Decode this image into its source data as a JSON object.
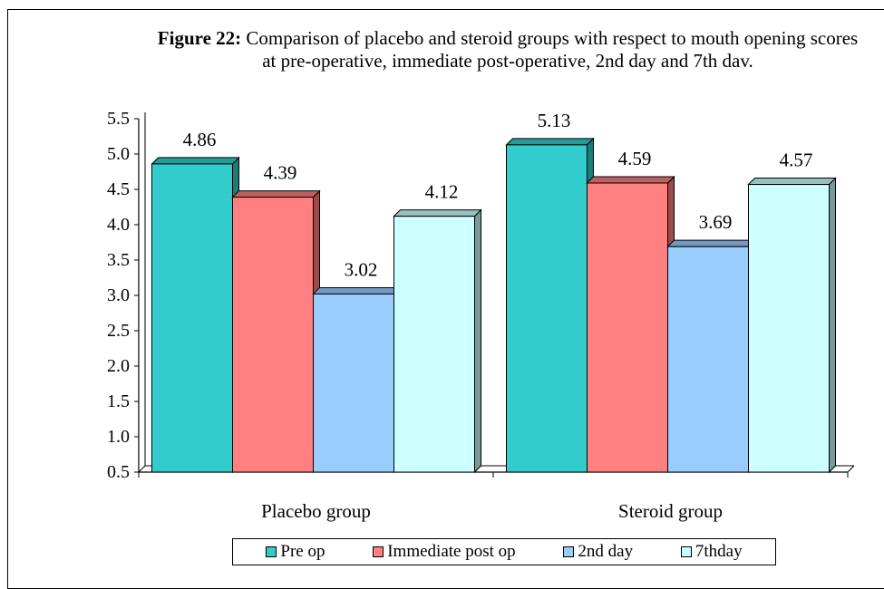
{
  "title": {
    "prefix": "Figure 22:",
    "text": " Comparison of placebo and steroid groups with respect to mouth opening scores at pre-operative, immediate post-operative, 2nd day and 7th dav."
  },
  "legend": {
    "items": [
      {
        "label": "Pre op",
        "color": "#33CCCC"
      },
      {
        "label": "Immediate post op",
        "color": "#FF8080"
      },
      {
        "label": "2nd day",
        "color": "#99CCFF"
      },
      {
        "label": "7thday",
        "color": "#CCFFFF"
      }
    ]
  },
  "chart_data": {
    "type": "bar",
    "categories": [
      "Placebo group",
      "Steroid group"
    ],
    "series": [
      {
        "name": "Pre op",
        "values": [
          4.86,
          5.13
        ]
      },
      {
        "name": "Immediate post op",
        "values": [
          4.39,
          4.59
        ]
      },
      {
        "name": "2nd day",
        "values": [
          3.02,
          3.69
        ]
      },
      {
        "name": "7thday",
        "values": [
          4.12,
          4.57
        ]
      }
    ],
    "data_labels": [
      [
        "4.86",
        "5.13"
      ],
      [
        "4.39",
        "4.59"
      ],
      [
        "3.02",
        "3.69"
      ],
      [
        "4.12",
        "4.57"
      ]
    ],
    "yticks": [
      "0.5",
      "1.0",
      "1.5",
      "2.0",
      "2.5",
      "3.0",
      "3.5",
      "4.0",
      "4.5",
      "5.0",
      "5.5"
    ],
    "ylim": [
      0.5,
      5.5
    ],
    "grid": false,
    "legend_position": "bottom",
    "colors": {
      "Pre op": "#33CCCC",
      "Immediate post op": "#FF8080",
      "2nd day": "#99CCFF",
      "7thday": "#CCFFFF"
    }
  }
}
